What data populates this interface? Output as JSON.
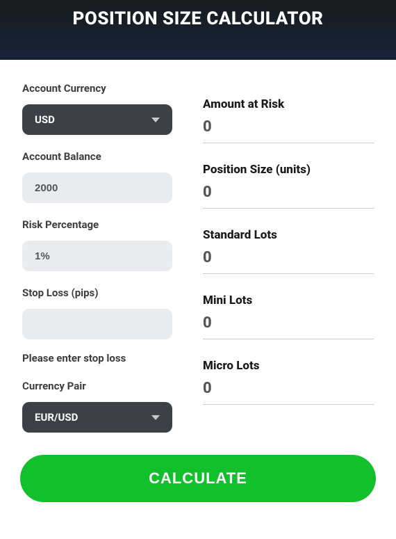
{
  "header": {
    "title": "POSITION SIZE CALCULATOR"
  },
  "form": {
    "account_currency": {
      "label": "Account Currency",
      "value": "USD"
    },
    "account_balance": {
      "label": "Account Balance",
      "value": "2000"
    },
    "risk_percentage": {
      "label": "Risk Percentage",
      "value": "1%"
    },
    "stop_loss": {
      "label": "Stop Loss (pips)",
      "value": "",
      "helper": "Please enter stop loss"
    },
    "currency_pair": {
      "label": "Currency Pair",
      "value": "EUR/USD"
    }
  },
  "results": {
    "amount_at_risk": {
      "label": "Amount at Risk",
      "value": "0"
    },
    "position_size": {
      "label": "Position Size (units)",
      "value": "0"
    },
    "standard_lots": {
      "label": "Standard Lots",
      "value": "0"
    },
    "mini_lots": {
      "label": "Mini Lots",
      "value": "0"
    },
    "micro_lots": {
      "label": "Micro Lots",
      "value": "0"
    }
  },
  "actions": {
    "calculate": "CALCULATE"
  },
  "colors": {
    "header_bg_top": "#1a1c1d",
    "header_bg_bottom": "#15233a",
    "select_bg": "#3d4045",
    "input_bg": "#e9ebee",
    "button_bg": "#11c02a",
    "text_white": "#ffffff",
    "text_dark": "#3d3d3d",
    "divider": "#cccccc"
  }
}
